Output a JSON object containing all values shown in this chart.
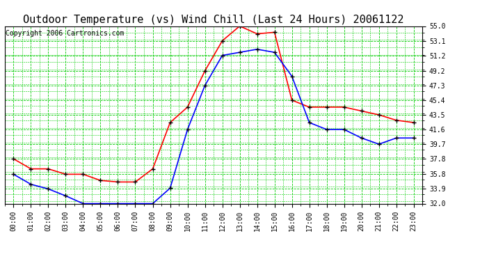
{
  "title": "Outdoor Temperature (vs) Wind Chill (Last 24 Hours) 20061122",
  "copyright": "Copyright 2006 Cartronics.com",
  "hours": [
    "00:00",
    "01:00",
    "02:00",
    "03:00",
    "04:00",
    "05:00",
    "06:00",
    "07:00",
    "08:00",
    "09:00",
    "10:00",
    "11:00",
    "12:00",
    "13:00",
    "14:00",
    "15:00",
    "16:00",
    "17:00",
    "18:00",
    "19:00",
    "20:00",
    "21:00",
    "22:00",
    "23:00"
  ],
  "temp": [
    37.8,
    36.5,
    36.5,
    35.8,
    35.8,
    35.0,
    34.8,
    34.8,
    36.5,
    42.5,
    44.5,
    49.2,
    53.1,
    55.0,
    54.0,
    54.2,
    45.4,
    44.5,
    44.5,
    44.5,
    44.0,
    43.5,
    42.8,
    42.5
  ],
  "windchill": [
    35.8,
    34.5,
    33.9,
    33.0,
    32.0,
    32.0,
    32.0,
    32.0,
    32.0,
    34.0,
    41.6,
    47.3,
    51.2,
    51.6,
    52.0,
    51.6,
    48.5,
    42.5,
    41.6,
    41.6,
    40.5,
    39.7,
    40.5,
    40.5
  ],
  "ylim": [
    32.0,
    55.0
  ],
  "yticks": [
    32.0,
    33.9,
    35.8,
    37.8,
    39.7,
    41.6,
    43.5,
    45.4,
    47.3,
    49.2,
    51.2,
    53.1,
    55.0
  ],
  "temp_color": "#ff0000",
  "windchill_color": "#0000ff",
  "grid_major_color": "#00cc00",
  "grid_minor_color": "#00cc00",
  "background_color": "#ffffff",
  "marker_color": "#000000",
  "title_fontsize": 11,
  "tick_fontsize": 7,
  "copyright_fontsize": 7
}
